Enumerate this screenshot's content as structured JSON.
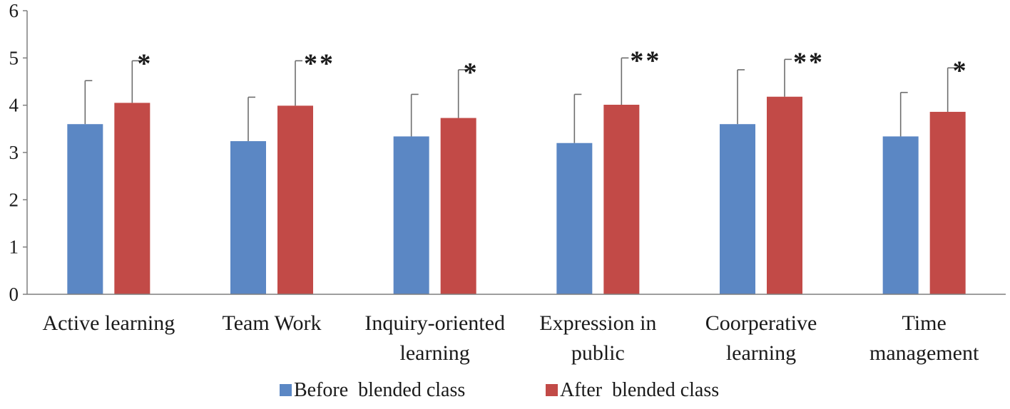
{
  "chart_data": {
    "type": "bar",
    "title": "",
    "xlabel": "",
    "ylabel": "",
    "ylim": [
      0,
      6
    ],
    "yticks": [
      0,
      1,
      2,
      3,
      4,
      5,
      6
    ],
    "grid": false,
    "legend_position": "bottom",
    "categories": [
      [
        "Active learning"
      ],
      [
        "Team Work"
      ],
      [
        "Inquiry-oriented",
        "learning"
      ],
      [
        "Expression in",
        "public"
      ],
      [
        "Coorperative",
        "learning"
      ],
      [
        "Time",
        "management"
      ]
    ],
    "series": [
      {
        "name": "Before  blended class",
        "color": "#5B87C4",
        "values": [
          3.6,
          3.24,
          3.34,
          3.2,
          3.6,
          3.34
        ],
        "error_upper": [
          4.52,
          4.17,
          4.23,
          4.23,
          4.75,
          4.27
        ]
      },
      {
        "name": "After  blended class",
        "color": "#C24A47",
        "values": [
          4.05,
          3.99,
          3.73,
          4.01,
          4.18,
          3.86
        ],
        "error_upper": [
          4.94,
          4.94,
          4.75,
          5.0,
          4.97,
          4.79
        ]
      }
    ],
    "annotations": [
      "*",
      "**",
      "*",
      "**",
      "**",
      "*"
    ]
  }
}
